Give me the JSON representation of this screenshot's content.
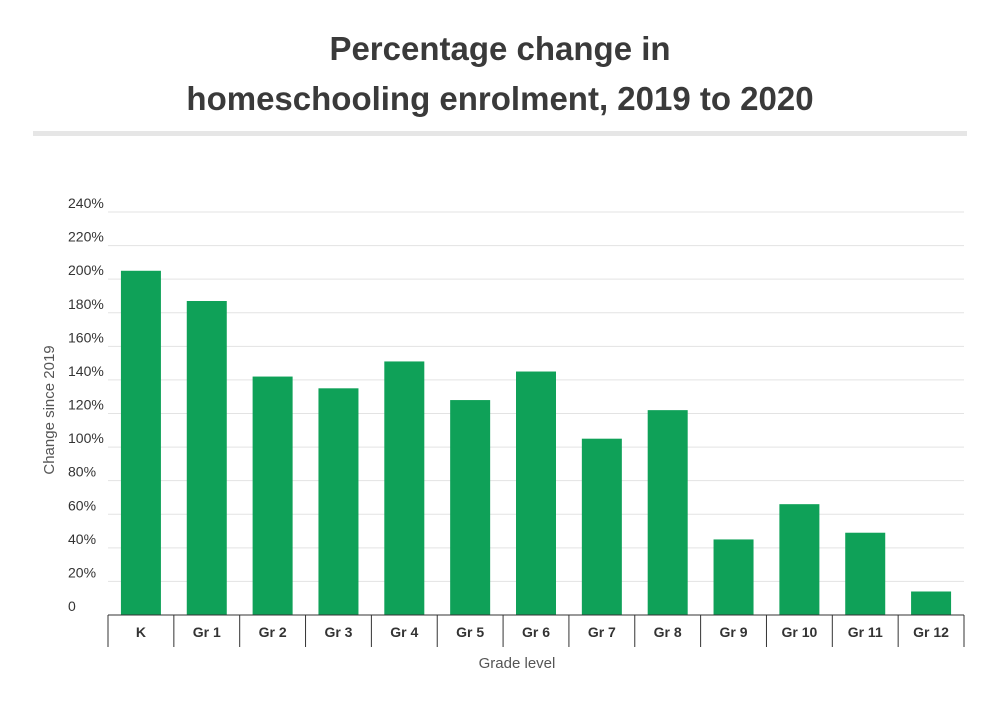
{
  "chart_data": {
    "type": "bar",
    "title_line1": "Percentage change in",
    "title_line2": "homeschooling enrolment, 2019 to 2020",
    "xlabel": "Grade level",
    "ylabel": "Change since 2019",
    "categories": [
      "K",
      "Gr 1",
      "Gr 2",
      "Gr 3",
      "Gr 4",
      "Gr 5",
      "Gr 6",
      "Gr 7",
      "Gr 8",
      "Gr 9",
      "Gr 10",
      "Gr 11",
      "Gr 12"
    ],
    "values": [
      205,
      187,
      142,
      135,
      151,
      128,
      145,
      105,
      122,
      45,
      66,
      49,
      14
    ],
    "ylim": [
      0,
      240
    ],
    "yticks": [
      0,
      20,
      40,
      60,
      80,
      100,
      120,
      140,
      160,
      180,
      200,
      220,
      240
    ],
    "ytick_labels": [
      "0",
      "20%",
      "40%",
      "60%",
      "80%",
      "100%",
      "120%",
      "140%",
      "160%",
      "180%",
      "200%",
      "220%",
      "240%"
    ],
    "bar_color": "#0fa158",
    "grid": true
  }
}
